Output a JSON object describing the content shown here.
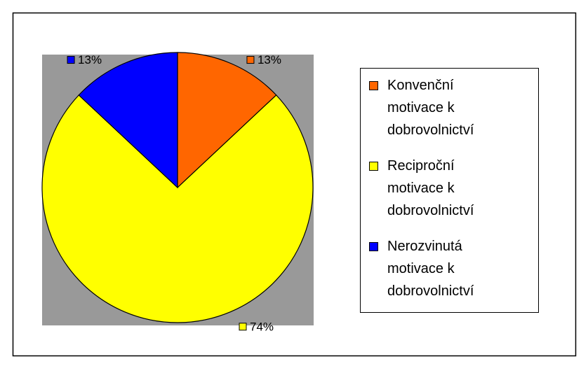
{
  "chart_data": {
    "type": "pie",
    "categories": [
      "Konvenční motivace k dobrovolnictví",
      "Reciproční motivace k dobrovolnictví",
      "Nerozvinutá motivace k dobrovolnictví"
    ],
    "values": [
      13,
      74,
      13
    ],
    "value_labels": [
      "13%",
      "74%",
      "13%"
    ],
    "colors": [
      "#ff6600",
      "#ffff00",
      "#0000ff"
    ],
    "legend": "right"
  }
}
